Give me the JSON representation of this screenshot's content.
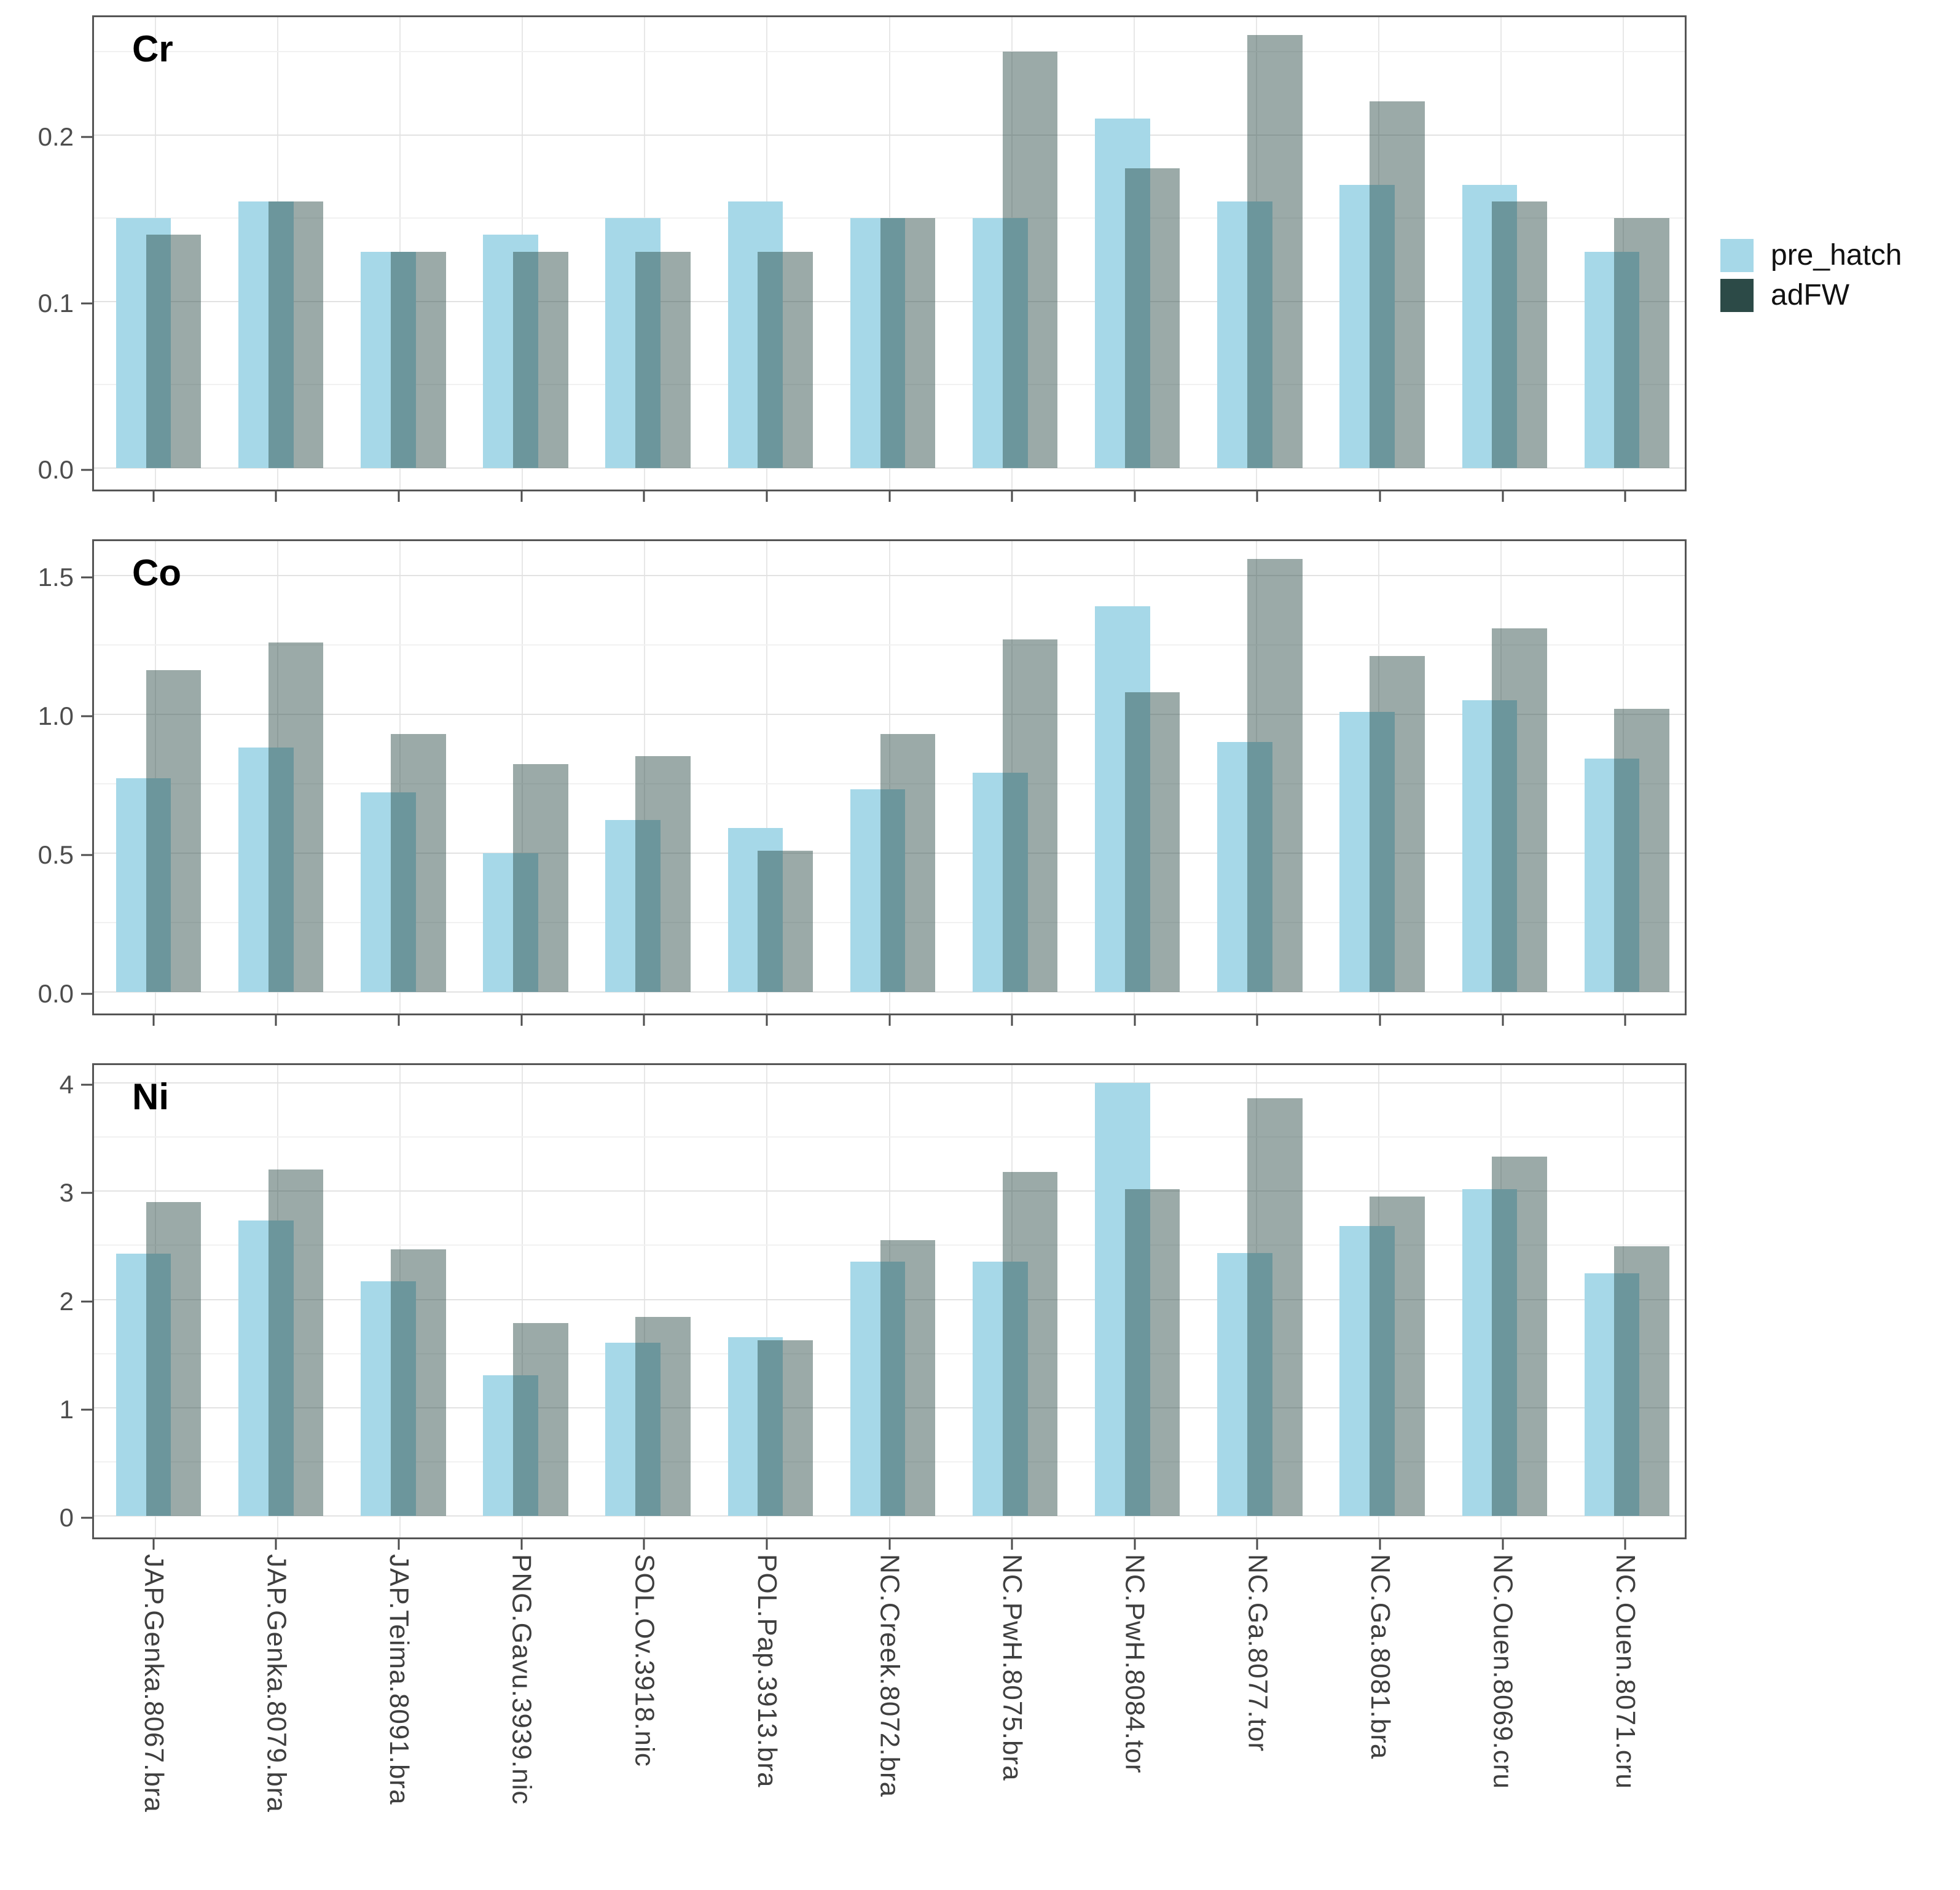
{
  "legend": {
    "items": [
      {
        "label": "pre_hatch",
        "color": "#A6D8E8"
      },
      {
        "label": "adFW",
        "color": "#2C4A47"
      }
    ]
  },
  "colors": {
    "pre_hatch_fill": "#A6D8E8",
    "adFW_fill_rgba": "rgba(46,77,73,0.48)",
    "adFW_legend": "#2C4A47",
    "panel_border": "#555555",
    "major_grid": "#e2e2e2",
    "minor_grid": "#f1f1f1",
    "tick_text": "#4d4d4d",
    "xlabel_text": "#3f3f3f"
  },
  "categories": [
    "JAP.Genka.8067.bra",
    "JAP.Genka.8079.bra",
    "JAP.Teima.8091.bra",
    "PNG.Gavu.3939.nic",
    "SOL.Ov.3918.nic",
    "POL.Pap.3913.bra",
    "NC.Creek.8072.bra",
    "NC.PwH.8075.bra",
    "NC.PwH.8084.tor",
    "NC.Ga.8077.tor",
    "NC.Ga.8081.bra",
    "NC.Ouen.8069.cru",
    "NC.Ouen.8071.cru"
  ],
  "chart_data": [
    {
      "type": "bar",
      "title": "Cr",
      "ylabel": "",
      "xlabel": "",
      "ylim": [
        0,
        0.273
      ],
      "yticks": [
        {
          "v": 0.0,
          "label": "0.0"
        },
        {
          "v": 0.1,
          "label": "0.1"
        },
        {
          "v": 0.2,
          "label": "0.2"
        }
      ],
      "yminor": [
        0.05,
        0.15,
        0.25
      ],
      "series": [
        {
          "name": "pre_hatch",
          "values": [
            0.15,
            0.16,
            0.13,
            0.14,
            0.15,
            0.16,
            0.15,
            0.15,
            0.21,
            0.16,
            0.17,
            0.17,
            0.13
          ]
        },
        {
          "name": "adFW",
          "values": [
            0.14,
            0.16,
            0.13,
            0.13,
            0.13,
            0.13,
            0.15,
            0.25,
            0.18,
            0.26,
            0.22,
            0.16,
            0.15
          ]
        }
      ]
    },
    {
      "type": "bar",
      "title": "Co",
      "ylabel": "",
      "xlabel": "",
      "ylim": [
        0,
        1.64
      ],
      "yticks": [
        {
          "v": 0.0,
          "label": "0.0"
        },
        {
          "v": 0.5,
          "label": "0.5"
        },
        {
          "v": 1.0,
          "label": "1.0"
        },
        {
          "v": 1.5,
          "label": "1.5"
        }
      ],
      "yminor": [
        0.25,
        0.75,
        1.25
      ],
      "series": [
        {
          "name": "pre_hatch",
          "values": [
            0.77,
            0.88,
            0.72,
            0.5,
            0.62,
            0.59,
            0.73,
            0.79,
            1.39,
            0.9,
            1.01,
            1.05,
            0.84
          ]
        },
        {
          "name": "adFW",
          "values": [
            1.16,
            1.26,
            0.93,
            0.82,
            0.85,
            0.51,
            0.93,
            1.27,
            1.08,
            1.56,
            1.21,
            1.31,
            1.02
          ]
        }
      ]
    },
    {
      "type": "bar",
      "title": "Ni",
      "ylabel": "",
      "xlabel": "",
      "ylim": [
        0,
        4.2
      ],
      "yticks": [
        {
          "v": 0,
          "label": "0"
        },
        {
          "v": 1,
          "label": "1"
        },
        {
          "v": 2,
          "label": "2"
        },
        {
          "v": 3,
          "label": "3"
        },
        {
          "v": 4,
          "label": "4"
        }
      ],
      "yminor": [
        0.5,
        1.5,
        2.5,
        3.5
      ],
      "series": [
        {
          "name": "pre_hatch",
          "values": [
            2.42,
            2.73,
            2.17,
            1.3,
            1.6,
            1.65,
            2.35,
            2.35,
            4.0,
            2.43,
            2.68,
            3.02,
            2.24
          ]
        },
        {
          "name": "adFW",
          "values": [
            2.9,
            3.2,
            2.46,
            1.78,
            1.84,
            1.62,
            2.55,
            3.18,
            3.02,
            3.86,
            2.95,
            3.32,
            2.49
          ]
        }
      ]
    }
  ]
}
